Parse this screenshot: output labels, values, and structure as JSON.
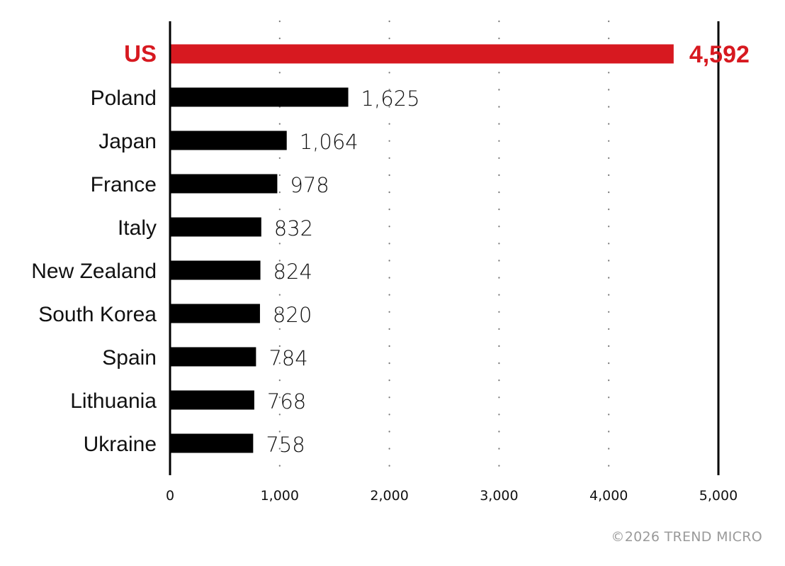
{
  "chart_data": {
    "type": "bar",
    "orientation": "horizontal",
    "categories": [
      "US",
      "Poland",
      "Japan",
      "France",
      "Italy",
      "New Zealand",
      "South Korea",
      "Spain",
      "Lithuania",
      "Ukraine"
    ],
    "values": [
      4592,
      1625,
      1064,
      978,
      832,
      824,
      820,
      784,
      768,
      758
    ],
    "value_labels": [
      "4,592",
      "1,625",
      "1,064",
      "978",
      "832",
      "824",
      "820",
      "784",
      "768",
      "758"
    ],
    "highlight": {
      "category": "US",
      "color": "#d71920"
    },
    "bar_color": "#000000",
    "xlim": [
      0,
      5000
    ],
    "xticks": [
      0,
      1000,
      2000,
      3000,
      4000,
      5000
    ],
    "xtick_labels": [
      "0",
      "1,000",
      "2,000",
      "3,000",
      "4,000",
      "5,000"
    ],
    "grid": "dotted vertical",
    "title": "",
    "xlabel": "",
    "ylabel": ""
  },
  "footer": {
    "copyright": "©2026 TREND MICRO"
  }
}
